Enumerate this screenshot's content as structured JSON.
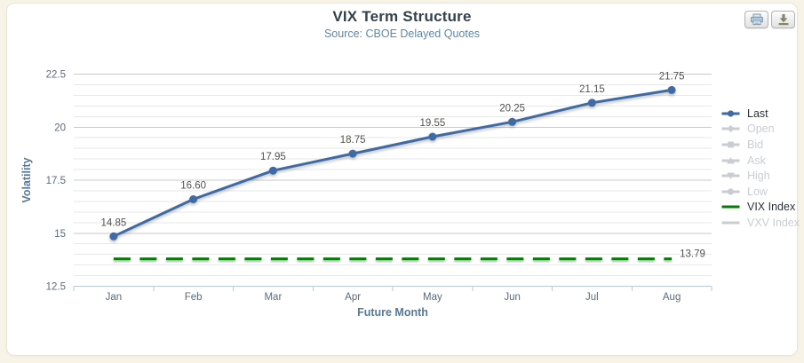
{
  "chart_data": {
    "type": "line",
    "title": "VIX Term Structure",
    "subtitle": "Source: CBOE Delayed Quotes",
    "xlabel": "Future Month",
    "ylabel": "Volatility",
    "categories": [
      "Jan",
      "Feb",
      "Mar",
      "Apr",
      "May",
      "Jun",
      "Jul",
      "Aug"
    ],
    "series": [
      {
        "name": "Last",
        "values": [
          14.85,
          16.6,
          17.95,
          18.75,
          19.55,
          20.25,
          21.15,
          21.75
        ],
        "labels": [
          "14.85",
          "16.60",
          "17.95",
          "18.75",
          "19.55",
          "20.25",
          "21.15",
          "21.75"
        ],
        "color": "#3e6ba5",
        "marker": "circle",
        "enabled": true
      }
    ],
    "reference_lines": [
      {
        "name": "VIX Index",
        "value": 13.79,
        "label": "13.79",
        "color": "#077c07",
        "style": "dashed"
      }
    ],
    "ylim": [
      12.5,
      22.9
    ],
    "yticks": [
      12.5,
      15,
      17.5,
      20,
      22.5
    ],
    "ytick_labels": [
      "12.5",
      "15",
      "17.5",
      "20",
      "22.5"
    ],
    "minor_step": 0.5,
    "grid": true,
    "legend_position": "right"
  },
  "legend": {
    "items": [
      {
        "label": "Last",
        "marker": "circle",
        "color": "#3e6ba5",
        "enabled": true
      },
      {
        "label": "Open",
        "marker": "diamond",
        "color": "#c9cdd1",
        "enabled": false
      },
      {
        "label": "Bid",
        "marker": "square",
        "color": "#c9cdd1",
        "enabled": false
      },
      {
        "label": "Ask",
        "marker": "triangle-up",
        "color": "#c9cdd1",
        "enabled": false
      },
      {
        "label": "High",
        "marker": "triangle-down",
        "color": "#c9cdd1",
        "enabled": false
      },
      {
        "label": "Low",
        "marker": "circle",
        "color": "#c9cdd1",
        "enabled": false
      },
      {
        "label": "VIX Index",
        "marker": "line",
        "color": "#077c07",
        "enabled": true
      },
      {
        "label": "VXV Index",
        "marker": "line",
        "color": "#c9cdd1",
        "enabled": false
      }
    ]
  },
  "toolbar": {
    "buttons": [
      {
        "icon": "printer-icon"
      },
      {
        "icon": "download-icon"
      }
    ]
  },
  "colors": {
    "series_blue": "#3e6ba5",
    "vix_green": "#077c07",
    "grid_major": "#c7cace",
    "grid_minor": "#e6e8ea",
    "axis_line": "#b9cbdb",
    "tick_text": "#5c6b7a",
    "data_label_text": "#55534e",
    "axis_title_text": "#54799e",
    "title_text": "#33414e",
    "subtitle_text": "#5e87ac",
    "page_bg": "#f7f3e7",
    "card_bg": "#ffffff"
  }
}
